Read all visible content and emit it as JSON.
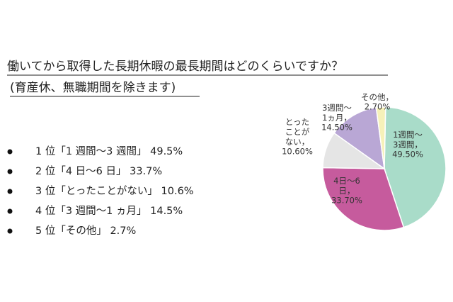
{
  "title": "働いてから取得した長期休暇の最長期間はどのくらいですか？",
  "subtitle": "(育産休、無職期間を除きます)",
  "list": [
    "1 位「1 週間〜3 週間」 49.5%",
    "2 位「4 日〜6 日」 33.7%",
    "3 位「とったことがない」 10.6%",
    "4 位「3 週間〜1 ヵ月」 14.5%",
    "5 位「その他」 2.7%"
  ],
  "chart_data": {
    "type": "pie",
    "categories": [
      "1週間〜\n3週間，",
      "4日〜6\n日，",
      "とった\nことが\nない，",
      "3週間〜\n1ヵ月，",
      "その他，"
    ],
    "values": [
      49.5,
      33.7,
      10.6,
      14.5,
      2.7
    ],
    "value_labels": [
      "49.50%",
      "33.70%",
      "10.60%",
      "14.50%",
      "2.70%"
    ],
    "colors": [
      "#a9dcc9",
      "#c65b9d",
      "#e5e5e5",
      "#b9a7d5",
      "#f6f1b9"
    ]
  }
}
